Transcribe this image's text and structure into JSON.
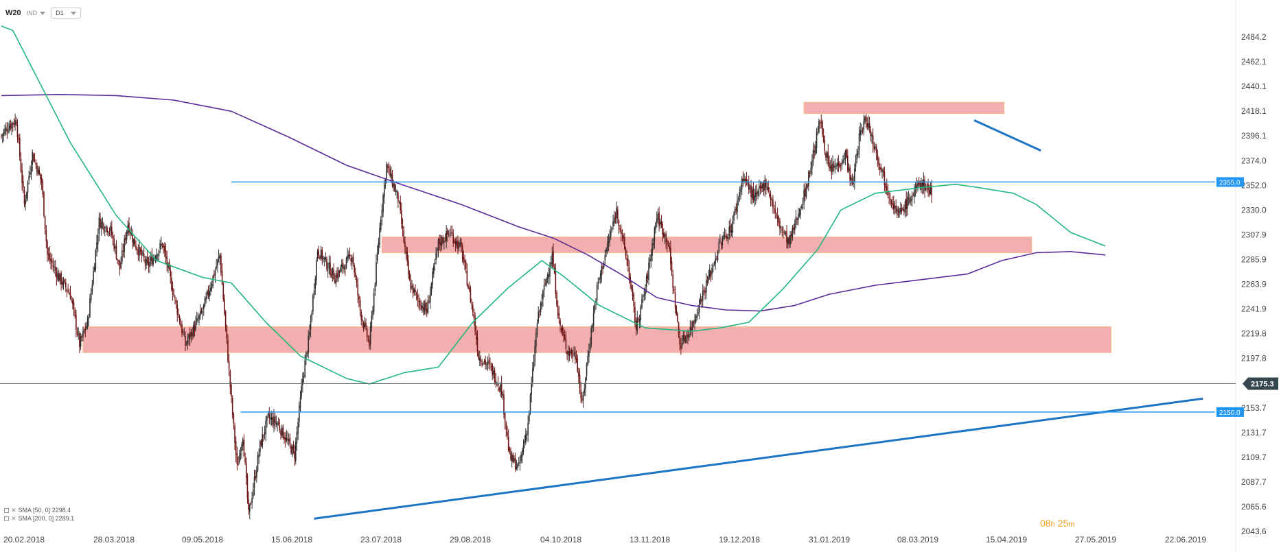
{
  "toolbar": {
    "symbol": "W20",
    "market": "IND",
    "timeframe": "D1"
  },
  "legend": [
    {
      "label": "SMA [50, 0] 2298.4"
    },
    {
      "label": "SMA [200, 0] 2289.1"
    }
  ],
  "timer": {
    "h": "08",
    "hu": "h",
    "m": "25",
    "mu": "m"
  },
  "colors": {
    "bull": "#2e2e2e",
    "bear": "#6e1313",
    "zone_fill": "#f2a6a6",
    "zone_border": "#f3b989",
    "trend": "#1b74c4",
    "sma50": "#22b77c",
    "sma200": "#5a2a98",
    "price_tag": "#37474f",
    "level_tag": "#2196f3"
  },
  "chart_data": {
    "type": "candlestick",
    "y_ticks": [
      "2484.2",
      "2462.1",
      "2440.1",
      "2418.1",
      "2396.1",
      "2374.0",
      "2352.0",
      "2330.0",
      "2307.9",
      "2285.9",
      "2263.9",
      "2241.9",
      "2219.8",
      "2197.8",
      "2153.7",
      "2131.7",
      "2109.7",
      "2087.7",
      "2065.6",
      "2043.6"
    ],
    "x_ticks": [
      "20.02.2018",
      "28.03.2018",
      "09.05.2018",
      "15.06.2018",
      "23.07.2018",
      "29.08.2018",
      "04.10.2018",
      "13.11.2018",
      "19.12.2018",
      "31.01.2019",
      "08.03.2019",
      "15.04.2019",
      "27.05.2019",
      "22.06.2019"
    ],
    "y_range": [
      2043.6,
      2484.2
    ],
    "last_price": "2175.3",
    "levels": [
      {
        "label": "2355.0",
        "value": 2355.0,
        "from": 200
      },
      {
        "label": "2150.0",
        "value": 2150.0,
        "from": 208
      }
    ],
    "zones": [
      {
        "y1": 2226,
        "y2": 2203,
        "x1": 71,
        "x2": 965
      },
      {
        "y1": 2306,
        "y2": 2292,
        "x1": 331,
        "x2": 896
      },
      {
        "y1": 2426,
        "y2": 2416,
        "x1": 698,
        "x2": 872
      }
    ],
    "trendlines": [
      {
        "x1": 272,
        "y1": 2055,
        "x2": 1045,
        "y2": 2162
      },
      {
        "x1": 846,
        "y1": 2410,
        "x2": 904,
        "y2": 2383
      }
    ],
    "sma50": [
      [
        0,
        2494
      ],
      [
        10,
        2490
      ],
      [
        30,
        2450
      ],
      [
        60,
        2390
      ],
      [
        100,
        2325
      ],
      [
        135,
        2285
      ],
      [
        175,
        2270
      ],
      [
        200,
        2265
      ],
      [
        230,
        2230
      ],
      [
        260,
        2200
      ],
      [
        300,
        2180
      ],
      [
        320,
        2175
      ],
      [
        350,
        2185
      ],
      [
        380,
        2190
      ],
      [
        410,
        2230
      ],
      [
        440,
        2260
      ],
      [
        470,
        2285
      ],
      [
        490,
        2270
      ],
      [
        520,
        2245
      ],
      [
        560,
        2225
      ],
      [
        600,
        2222
      ],
      [
        625,
        2225
      ],
      [
        650,
        2230
      ],
      [
        680,
        2260
      ],
      [
        710,
        2295
      ],
      [
        730,
        2330
      ],
      [
        760,
        2345
      ],
      [
        800,
        2350
      ],
      [
        830,
        2353
      ],
      [
        850,
        2350
      ],
      [
        880,
        2345
      ],
      [
        900,
        2335
      ],
      [
        930,
        2310
      ],
      [
        960,
        2298
      ]
    ],
    "sma200": [
      [
        0,
        2432
      ],
      [
        50,
        2433
      ],
      [
        100,
        2432
      ],
      [
        150,
        2428
      ],
      [
        200,
        2418
      ],
      [
        250,
        2395
      ],
      [
        300,
        2370
      ],
      [
        350,
        2352
      ],
      [
        400,
        2335
      ],
      [
        450,
        2315
      ],
      [
        480,
        2305
      ],
      [
        510,
        2290
      ],
      [
        540,
        2272
      ],
      [
        570,
        2252
      ],
      [
        600,
        2245
      ],
      [
        630,
        2241
      ],
      [
        660,
        2240
      ],
      [
        690,
        2245
      ],
      [
        720,
        2255
      ],
      [
        760,
        2263
      ],
      [
        800,
        2268
      ],
      [
        840,
        2273
      ],
      [
        870,
        2285
      ],
      [
        900,
        2292
      ],
      [
        930,
        2293
      ],
      [
        960,
        2290
      ]
    ]
  }
}
